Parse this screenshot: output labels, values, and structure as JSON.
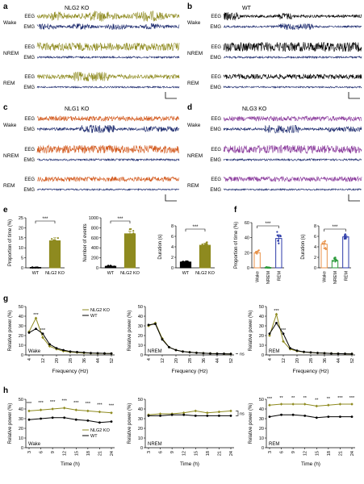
{
  "colors": {
    "nlg2": "#8e8a1f",
    "wt": "#000000",
    "emg": "#1c2a6e",
    "nlg1": "#d35a1e",
    "nlg3": "#8a3a9c",
    "wake_bar": "#e8924a",
    "nrem_bar": "#2a9a3a",
    "rem_bar": "#2b3aa8"
  },
  "panels": {
    "a": {
      "letter": "a",
      "title": "NLG2 KO"
    },
    "b": {
      "letter": "b",
      "title": "WT"
    },
    "c": {
      "letter": "c",
      "title": "NLG1 KO"
    },
    "d": {
      "letter": "d",
      "title": "NLG3 KO"
    },
    "e": {
      "letter": "e"
    },
    "f": {
      "letter": "f"
    },
    "g": {
      "letter": "g"
    },
    "h": {
      "letter": "h"
    }
  },
  "trace_labels": {
    "eeg": "EEG",
    "emg": "EMG",
    "wake": "Wake",
    "nrem": "NREM",
    "rem": "REM"
  },
  "significance": {
    "three": "***",
    "two": "**",
    "ns": "ns"
  },
  "chart_data": [
    {
      "id": "e1",
      "type": "bar",
      "categories": [
        "WT",
        "NLG2 KO"
      ],
      "values": [
        0.2,
        13.5
      ],
      "errors": [
        0.1,
        1.5
      ],
      "ylabel": "Proportion of time (%)",
      "ylim": [
        0,
        25
      ],
      "yticks": [
        "0",
        "5",
        "10",
        "15",
        "20",
        "25"
      ],
      "annotation": "***"
    },
    {
      "id": "e2",
      "type": "bar",
      "categories": [
        "WT",
        "NLG2 KO"
      ],
      "values": [
        30,
        680
      ],
      "errors": [
        10,
        50
      ],
      "ylabel": "Number of events",
      "ylim": [
        0,
        1000
      ],
      "yticks": [
        "0",
        "200",
        "400",
        "600",
        "800",
        "1000"
      ],
      "annotation": "***"
    },
    {
      "id": "e3",
      "type": "bar",
      "categories": [
        "WT",
        "NLG2 KO"
      ],
      "values": [
        1.1,
        4.3
      ],
      "errors": [
        0.1,
        0.4
      ],
      "ylabel": "Duration (s)",
      "ylim": [
        0,
        8
      ],
      "yticks": [
        "0",
        "2",
        "4",
        "6",
        "8"
      ],
      "annotation": "***"
    },
    {
      "id": "f1",
      "type": "bar",
      "categories": [
        "Wake",
        "NREM",
        "REM"
      ],
      "values": [
        20,
        0.5,
        39
      ],
      "errors": [
        2,
        0.3,
        5
      ],
      "ylabel": "Proportion of time (%)",
      "ylim": [
        0,
        60
      ],
      "yticks": [
        "0",
        "20",
        "40",
        "60"
      ],
      "annotation": "***"
    },
    {
      "id": "f2",
      "type": "bar",
      "categories": [
        "Wake",
        "NREM",
        "REM"
      ],
      "values": [
        4.5,
        1.4,
        5.9
      ],
      "errors": [
        0.5,
        0.3,
        0.3
      ],
      "ylabel": "Duration (s)",
      "ylim": [
        0,
        8
      ],
      "yticks": [
        "0",
        "2",
        "4",
        "6",
        "8"
      ],
      "annotation": "***"
    },
    {
      "id": "g1",
      "type": "line",
      "state": "Wake",
      "x": [
        4,
        8,
        12,
        16,
        20,
        24,
        28,
        32,
        36,
        40,
        44,
        48,
        52
      ],
      "xticks": [
        "4",
        "12",
        "20",
        "28",
        "36",
        "44",
        "52"
      ],
      "xlabel": "Frequency (Hz)",
      "ylabel": "Relative power (%)",
      "ylim": [
        0,
        50
      ],
      "yticks": [
        "0",
        "10",
        "20",
        "30",
        "40",
        "50"
      ],
      "series": [
        {
          "name": "NLG2 KO",
          "values": [
            24,
            38,
            18,
            9,
            6,
            4,
            3,
            2.5,
            2,
            1.8,
            1.6,
            1.5,
            1.4
          ]
        },
        {
          "name": "WT",
          "values": [
            23,
            27,
            22,
            11,
            7,
            5,
            3.5,
            3,
            2.5,
            2,
            1.8,
            1.6,
            1.5
          ]
        }
      ],
      "marks": [
        {
          "x": 8,
          "text": "***",
          "y": 40
        },
        {
          "x": 12,
          "text": "***",
          "y": 24
        }
      ],
      "legend": "top-right"
    },
    {
      "id": "g2",
      "type": "line",
      "state": "NREM",
      "x": [
        4,
        8,
        12,
        16,
        20,
        24,
        28,
        32,
        36,
        40,
        44,
        48,
        52
      ],
      "xticks": [
        "4",
        "12",
        "20",
        "28",
        "36",
        "44",
        "52"
      ],
      "xlabel": "Frequency (Hz)",
      "ylabel": "Relative power (%)",
      "ylim": [
        0,
        50
      ],
      "yticks": [
        "0",
        "10",
        "20",
        "30",
        "40",
        "50"
      ],
      "series": [
        {
          "name": "NLG2 KO",
          "values": [
            30,
            33,
            17,
            8,
            5,
            3.5,
            2.8,
            2.2,
            1.8,
            1.5,
            1.3,
            1.2,
            1.1
          ]
        },
        {
          "name": "WT",
          "values": [
            31,
            32,
            16,
            8,
            5,
            3.5,
            2.8,
            2.2,
            1.8,
            1.5,
            1.3,
            1.2,
            1.1
          ]
        }
      ],
      "side": "ns"
    },
    {
      "id": "g3",
      "type": "line",
      "state": "REM",
      "x": [
        4,
        8,
        12,
        16,
        20,
        24,
        28,
        32,
        36,
        40,
        44,
        48,
        52
      ],
      "xticks": [
        "4",
        "12",
        "20",
        "28",
        "36",
        "44",
        "52"
      ],
      "xlabel": "Frequency (Hz)",
      "ylabel": "Relative power (%)",
      "ylim": [
        0,
        50
      ],
      "yticks": [
        "0",
        "10",
        "20",
        "30",
        "40",
        "50"
      ],
      "series": [
        {
          "name": "NLG2 KO",
          "values": [
            20,
            42,
            14,
            6,
            4,
            3,
            2.5,
            2,
            1.8,
            1.5,
            1.3,
            1.2,
            1.1
          ]
        },
        {
          "name": "WT",
          "values": [
            22,
            33,
            22,
            7,
            4.5,
            3.2,
            2.6,
            2.1,
            1.8,
            1.5,
            1.3,
            1.2,
            1.1
          ]
        }
      ],
      "marks": [
        {
          "x": 8,
          "text": "***",
          "y": 44
        },
        {
          "x": 12,
          "text": "***",
          "y": 24
        }
      ]
    },
    {
      "id": "h1",
      "type": "line",
      "state": "Wake",
      "x": [
        3,
        6,
        9,
        12,
        15,
        18,
        21,
        24
      ],
      "xticks": [
        "3",
        "6",
        "9",
        "12",
        "15",
        "18",
        "21",
        "24"
      ],
      "xlabel": "Time (h)",
      "ylabel": "Relative power (%)",
      "ylim": [
        0,
        50
      ],
      "yticks": [
        "0",
        "10",
        "20",
        "30",
        "40",
        "50"
      ],
      "series": [
        {
          "name": "NLG2 KO",
          "values": [
            38,
            39,
            40,
            41,
            39,
            38,
            37,
            36
          ]
        },
        {
          "name": "WT",
          "values": [
            29,
            30,
            31,
            31,
            29,
            28,
            26,
            27
          ]
        }
      ],
      "marks": [
        {
          "x": 3,
          "text": "***",
          "y": 44
        },
        {
          "x": 6,
          "text": "***",
          "y": 45
        },
        {
          "x": 9,
          "text": "***",
          "y": 46
        },
        {
          "x": 12,
          "text": "***",
          "y": 47
        },
        {
          "x": 15,
          "text": "***",
          "y": 45
        },
        {
          "x": 18,
          "text": "***",
          "y": 44
        },
        {
          "x": 21,
          "text": "***",
          "y": 43
        },
        {
          "x": 24,
          "text": "***",
          "y": 42
        }
      ],
      "legend": "bottom-right"
    },
    {
      "id": "h2",
      "type": "line",
      "state": "NREM",
      "x": [
        3,
        6,
        9,
        12,
        15,
        18,
        21,
        24
      ],
      "xticks": [
        "3",
        "6",
        "9",
        "12",
        "15",
        "18",
        "21",
        "24"
      ],
      "xlabel": "Time (h)",
      "ylabel": "Relative power (%)",
      "ylim": [
        0,
        50
      ],
      "yticks": [
        "0",
        "10",
        "20",
        "30",
        "40",
        "50"
      ],
      "series": [
        {
          "name": "NLG2 KO",
          "values": [
            34,
            35,
            35,
            36,
            38,
            36,
            37,
            38
          ]
        },
        {
          "name": "WT",
          "values": [
            33,
            33,
            34,
            34,
            33,
            33,
            33,
            33
          ]
        }
      ],
      "side": "ns"
    },
    {
      "id": "h3",
      "type": "line",
      "state": "REM",
      "x": [
        3,
        6,
        9,
        12,
        15,
        18,
        21,
        24
      ],
      "xticks": [
        "3",
        "6",
        "9",
        "12",
        "15",
        "18",
        "21",
        "24"
      ],
      "xlabel": "Time (h)",
      "ylabel": "Relative power (%)",
      "ylim": [
        0,
        50
      ],
      "yticks": [
        "0",
        "10",
        "20",
        "30",
        "40",
        "50"
      ],
      "series": [
        {
          "name": "NLG2 KO",
          "values": [
            44,
            45,
            45,
            45,
            43,
            44,
            45,
            45
          ]
        },
        {
          "name": "WT",
          "values": [
            32,
            34,
            34,
            33,
            31,
            32,
            32,
            32
          ]
        }
      ],
      "marks": [
        {
          "x": 3,
          "text": "***",
          "y": 49
        },
        {
          "x": 6,
          "text": "**",
          "y": 50
        },
        {
          "x": 9,
          "text": "**",
          "y": 50
        },
        {
          "x": 12,
          "text": "**",
          "y": 50
        },
        {
          "x": 15,
          "text": "**",
          "y": 48
        },
        {
          "x": 18,
          "text": "**",
          "y": 49
        },
        {
          "x": 21,
          "text": "***",
          "y": 50
        },
        {
          "x": 24,
          "text": "***",
          "y": 50
        }
      ]
    }
  ]
}
